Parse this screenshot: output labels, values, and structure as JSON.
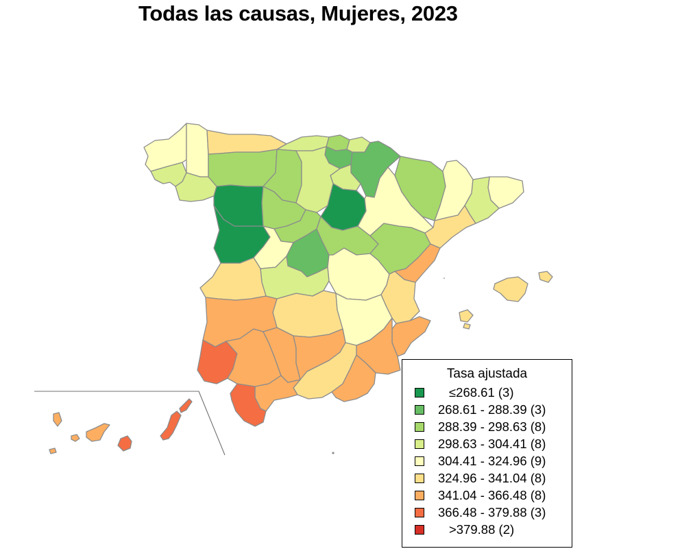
{
  "title": "Todas las causas, Mujeres, 2023",
  "colors": {
    "c1": "#1a9850",
    "c2": "#66bd63",
    "c3": "#a6d96a",
    "c4": "#d9ef8b",
    "c5": "#ffffbf",
    "c6": "#fee08b",
    "c7": "#fdae61",
    "c8": "#f46d43",
    "c9": "#d73027",
    "border": "#8c8c8c"
  },
  "legend": {
    "title": "Tasa ajustada",
    "items": [
      {
        "label": "≤268.61  (3)",
        "color": "#1a9850"
      },
      {
        "label": "268.61 - 288.39  (3)",
        "color": "#66bd63"
      },
      {
        "label": "288.39 - 298.63  (8)",
        "color": "#a6d96a"
      },
      {
        "label": "298.63 - 304.41  (8)",
        "color": "#d9ef8b"
      },
      {
        "label": "304.41 - 324.96  (9)",
        "color": "#ffffbf"
      },
      {
        "label": "324.96 - 341.04  (8)",
        "color": "#fee08b"
      },
      {
        "label": "341.04 - 366.48  (8)",
        "color": "#fdae61"
      },
      {
        "label": "366.48 - 379.88  (3)",
        "color": "#f46d43"
      },
      {
        "label": ">379.88  (2)",
        "color": "#d73027"
      }
    ]
  }
}
